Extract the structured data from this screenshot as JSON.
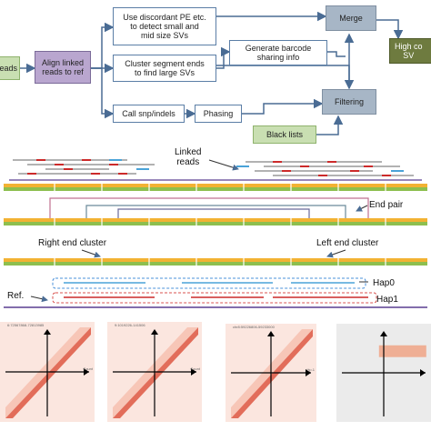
{
  "flowchart": {
    "input_reads": "eads",
    "align_box": "Align linked\nreads to ref",
    "discordant_box": "Use discordant PE etc.\nto detect small  and\nmid size SVs",
    "cluster_box": "Cluster segment ends\nto find large SVs",
    "snp_box": "Call snp/indels",
    "phasing_box": "Phasing",
    "barcode_box": "Generate barcode\nsharing info",
    "merge_box": "Merge",
    "filtering_box": "Filtering",
    "blacklist_box": "Black lists",
    "output_box": "High co\nSV"
  },
  "linked_reads": {
    "label": "Linked\nreads",
    "end_pair": "End pair",
    "right_end_cluster": "Right end cluster",
    "left_end_cluster": "Left end cluster",
    "hap0": "Hap0",
    "hap1": "Hap1",
    "ref": "Ref."
  },
  "heatmaps": [
    {
      "title": "6:72567868-72813985",
      "legend": "Count"
    },
    {
      "title": "9:1019226-141506",
      "legend": "Count"
    },
    {
      "title": "chr8:59226806-59233000",
      "legend": "Hp.1"
    },
    {
      "title": ""
    }
  ],
  "colors": {
    "box_border": "#5b7ea6",
    "arrow": "#4a6c94",
    "genome_bar_orange": "#f2b233",
    "genome_bar_green": "#8dbf4f",
    "read_red": "#cc2a2a",
    "read_blue": "#4aa3d8",
    "hap_blue": "#4a90d9",
    "hap_red": "#d9534f",
    "heat_red": "#d9442e"
  }
}
